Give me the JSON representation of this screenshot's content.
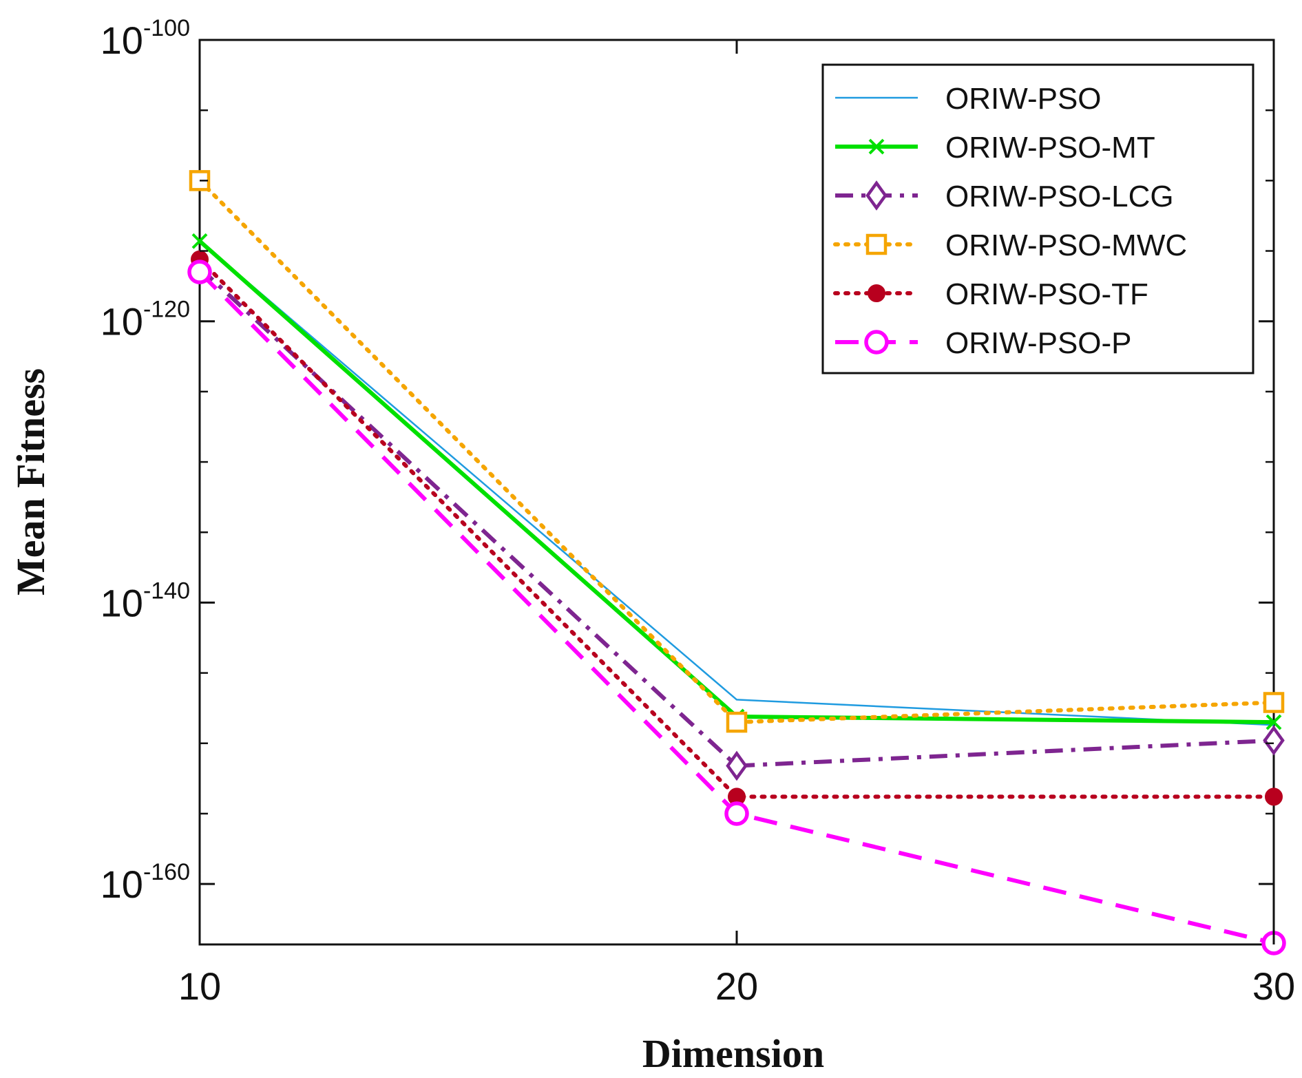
{
  "chart_data": {
    "type": "line",
    "title": "",
    "xlabel": "Dimension",
    "ylabel": "Mean Fitness",
    "x": [
      10,
      20,
      30
    ],
    "xlim": [
      10,
      30
    ],
    "xticks": [
      "10",
      "20",
      "30"
    ],
    "yscale": "log",
    "ylim_exponent": [
      -164.3,
      -100
    ],
    "yticks": [
      {
        "base": "10",
        "exp": "-100",
        "log10": -100
      },
      {
        "base": "10",
        "exp": "-120",
        "log10": -120
      },
      {
        "base": "10",
        "exp": "-140",
        "log10": -140
      },
      {
        "base": "10",
        "exp": "-160",
        "log10": -160
      }
    ],
    "grid": false,
    "legend_position": "top-right",
    "series": [
      {
        "name": "ORIW-PSO",
        "log10_values": [
          -114.3,
          -146.9,
          -148.7
        ],
        "color": "#1f9be0",
        "style": "solid",
        "marker": "none"
      },
      {
        "name": "ORIW-PSO-MT",
        "log10_values": [
          -114.3,
          -148.1,
          -148.5
        ],
        "color": "#00e000",
        "style": "solid",
        "marker": "x"
      },
      {
        "name": "ORIW-PSO-LCG",
        "log10_values": [
          -116.2,
          -151.6,
          -149.8
        ],
        "color": "#7e2590",
        "style": "dashdot",
        "marker": "diamond"
      },
      {
        "name": "ORIW-PSO-MWC",
        "log10_values": [
          -110.0,
          -148.5,
          -147.1
        ],
        "color": "#f5a500",
        "style": "dotted",
        "marker": "square"
      },
      {
        "name": "ORIW-PSO-TF",
        "log10_values": [
          -115.6,
          -153.8,
          -153.8
        ],
        "color": "#b8001e",
        "style": "dotted",
        "marker": "filled-circle"
      },
      {
        "name": "ORIW-PSO-P",
        "log10_values": [
          -116.5,
          -155.0,
          -164.2
        ],
        "color": "#ff00ff",
        "style": "dashed",
        "marker": "open-circle"
      }
    ]
  }
}
